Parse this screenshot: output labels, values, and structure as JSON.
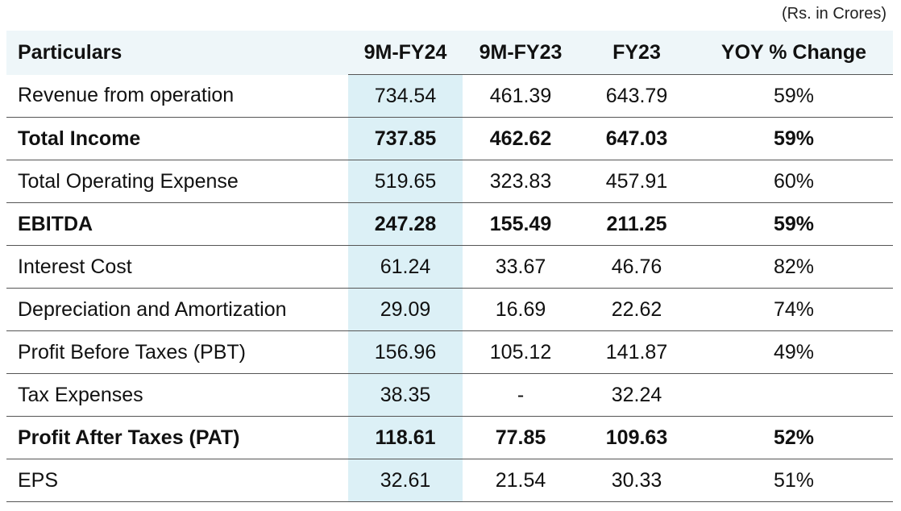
{
  "unit_note": "(Rs. in Crores)",
  "headers": [
    "Particulars",
    "9M-FY24",
    "9M-FY23",
    "FY23",
    "YOY % Change"
  ],
  "rows": [
    {
      "label": "Revenue from operation",
      "v1": "734.54",
      "v2": "461.39",
      "v3": "643.79",
      "yoy": "59%"
    },
    {
      "label": "Total Income",
      "v1": "737.85",
      "v2": "462.62",
      "v3": "647.03",
      "yoy": "59%"
    },
    {
      "label": "Total Operating Expense",
      "v1": "519.65",
      "v2": "323.83",
      "v3": "457.91",
      "yoy": "60%"
    },
    {
      "label": "EBITDA",
      "v1": "247.28",
      "v2": "155.49",
      "v3": "211.25",
      "yoy": "59%"
    },
    {
      "label": "Interest Cost",
      "v1": "61.24",
      "v2": "33.67",
      "v3": "46.76",
      "yoy": "82%"
    },
    {
      "label": "Depreciation and Amortization",
      "v1": "29.09",
      "v2": "16.69",
      "v3": "22.62",
      "yoy": "74%"
    },
    {
      "label": "Profit Before Taxes (PBT)",
      "v1": "156.96",
      "v2": "105.12",
      "v3": "141.87",
      "yoy": "49%"
    },
    {
      "label": "Tax Expenses",
      "v1": "38.35",
      "v2": "-",
      "v3": "32.24",
      "yoy": ""
    },
    {
      "label": "Profit After Taxes (PAT)",
      "v1": "118.61",
      "v2": "77.85",
      "v3": "109.63",
      "yoy": "52%"
    },
    {
      "label": "EPS",
      "v1": "32.61",
      "v2": "21.54",
      "v3": "30.33",
      "yoy": "51%"
    }
  ]
}
